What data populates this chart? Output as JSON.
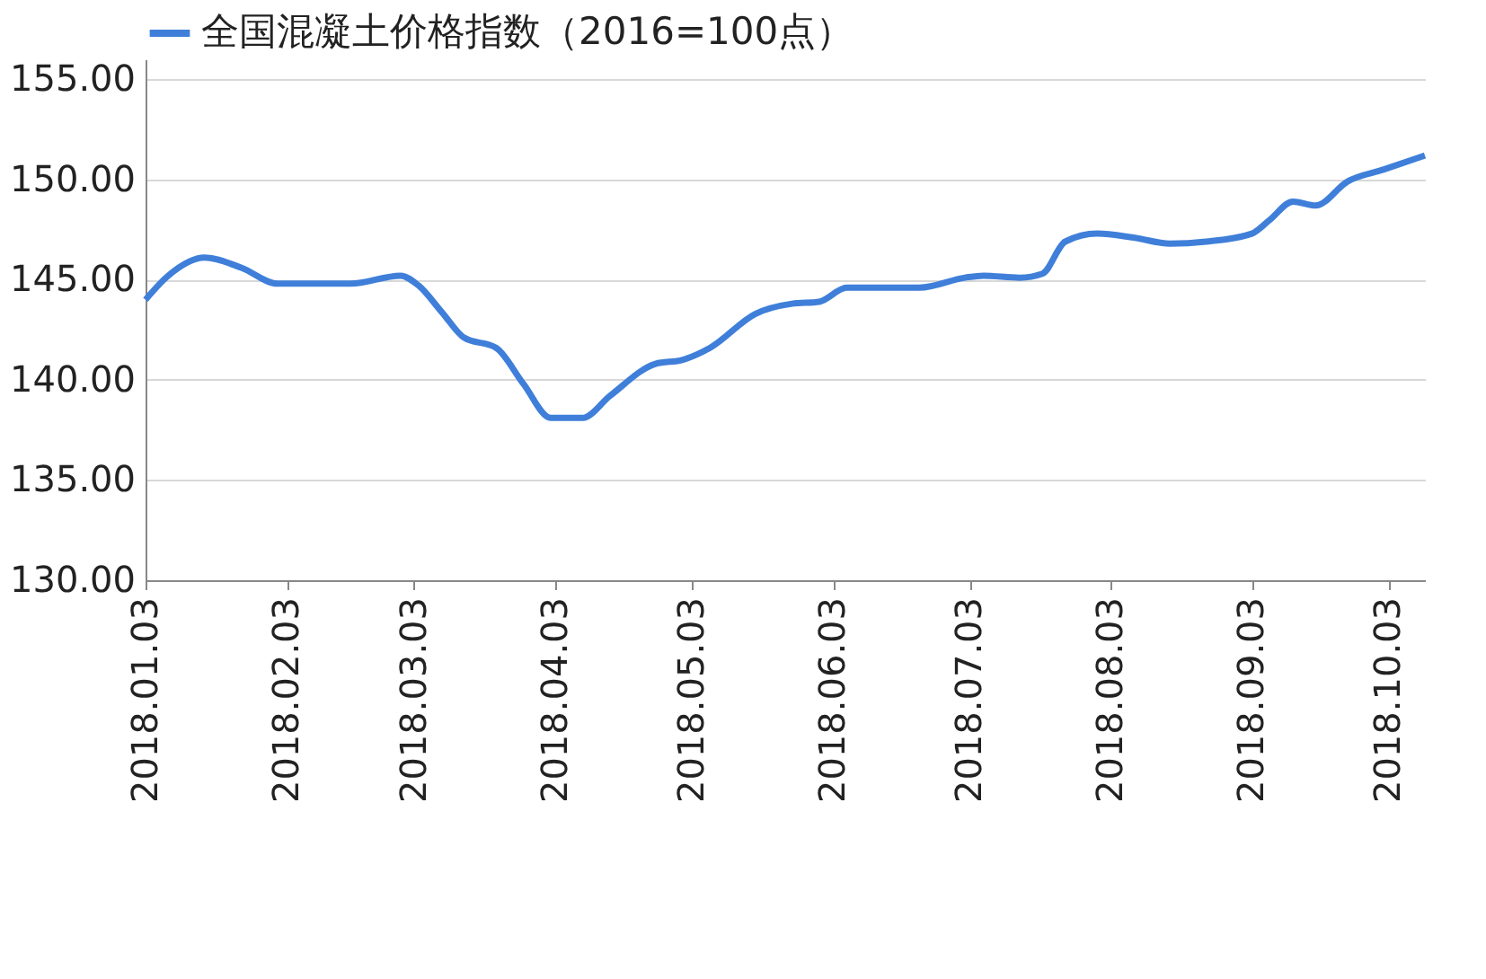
{
  "chart_data": {
    "type": "line",
    "x": [
      "2018-01-03",
      "2018-01-08",
      "2018-01-16",
      "2018-01-24",
      "2018-02-01",
      "2018-02-09",
      "2018-02-17",
      "2018-02-28",
      "2018-03-04",
      "2018-03-09",
      "2018-03-14",
      "2018-03-21",
      "2018-03-27",
      "2018-04-02",
      "2018-04-09",
      "2018-04-15",
      "2018-04-25",
      "2018-05-01",
      "2018-05-07",
      "2018-05-17",
      "2018-05-25",
      "2018-05-31",
      "2018-06-06",
      "2018-06-18",
      "2018-06-22",
      "2018-07-02",
      "2018-07-06",
      "2018-07-14",
      "2018-07-19",
      "2018-07-24",
      "2018-07-31",
      "2018-08-08",
      "2018-08-16",
      "2018-08-24",
      "2018-09-03",
      "2018-09-07",
      "2018-09-12",
      "2018-09-17",
      "2018-09-24",
      "2018-10-02",
      "2018-10-11"
    ],
    "series": [
      {
        "name": "全国混凝土价格指数（2016=100点）",
        "color": "#3f7fd9",
        "values": [
          144.0,
          145.2,
          146.1,
          145.6,
          144.8,
          144.8,
          144.8,
          145.2,
          144.7,
          143.4,
          142.1,
          141.6,
          139.8,
          138.1,
          138.1,
          139.2,
          140.8,
          141.0,
          141.6,
          143.3,
          143.8,
          143.9,
          144.6,
          144.6,
          144.6,
          145.1,
          145.2,
          145.1,
          145.3,
          146.9,
          147.3,
          147.1,
          146.8,
          146.9,
          147.3,
          148.0,
          148.9,
          148.7,
          149.9,
          150.5,
          151.2
        ]
      }
    ],
    "xlim": [
      "2018-01-03",
      "2018-10-11"
    ],
    "xticks": [
      {
        "value": "2018-01-03",
        "label": "2018.01.03"
      },
      {
        "value": "2018-02-03",
        "label": "2018.02.03"
      },
      {
        "value": "2018-03-03",
        "label": "2018.03.03"
      },
      {
        "value": "2018-04-03",
        "label": "2018.04.03"
      },
      {
        "value": "2018-05-03",
        "label": "2018.05.03"
      },
      {
        "value": "2018-06-03",
        "label": "2018.06.03"
      },
      {
        "value": "2018-07-03",
        "label": "2018.07.03"
      },
      {
        "value": "2018-08-03",
        "label": "2018.08.03"
      },
      {
        "value": "2018-09-03",
        "label": "2018.09.03"
      },
      {
        "value": "2018-10-03",
        "label": "2018.10.03"
      }
    ],
    "ylim": [
      130,
      156
    ],
    "yticks": [
      {
        "value": 130,
        "label": "130.00"
      },
      {
        "value": 135,
        "label": "135.00"
      },
      {
        "value": 140,
        "label": "140.00"
      },
      {
        "value": 145,
        "label": "145.00"
      },
      {
        "value": 150,
        "label": "150.00"
      },
      {
        "value": 155,
        "label": "155.00"
      }
    ],
    "grid": "y",
    "legend": "top",
    "marker": "none",
    "line_style": "solid"
  }
}
